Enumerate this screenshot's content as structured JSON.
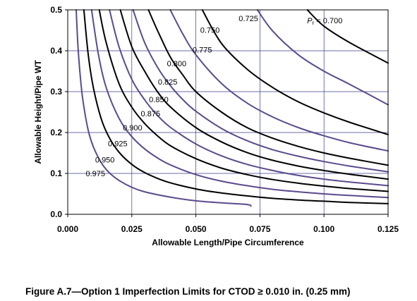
{
  "caption": "Figure  A.7—Option 1 Imperfection Limits for CTOD ≥ 0.010 in. (0.25 mm)",
  "chart_data": {
    "type": "line",
    "xlabel": "Allowable Length/Pipe Circumference",
    "ylabel": "Allowable Height/Pipe WT",
    "xlim": [
      0,
      0.125
    ],
    "ylim": [
      0,
      0.5
    ],
    "xticks": [
      "0.000",
      "0.025",
      "0.050",
      "0.075",
      "0.100",
      "0.125"
    ],
    "yticks": [
      "0.0",
      "0.1",
      "0.2",
      "0.3",
      "0.4",
      "0.5"
    ],
    "grid": true,
    "colors": {
      "black": "#000000",
      "purple": "#5b4a8c",
      "grid": "#3a3a8a"
    },
    "series": [
      {
        "name": "0.700",
        "color": "black",
        "label_x": 0.1003,
        "label_y": 0.467,
        "points": [
          [
            0.0935,
            0.5
          ],
          [
            0.1,
            0.46
          ],
          [
            0.11,
            0.42
          ],
          [
            0.125,
            0.37
          ]
        ]
      },
      {
        "name": "0.725",
        "color": "purple",
        "label_x": 0.0705,
        "label_y": 0.472,
        "points": [
          [
            0.074,
            0.5
          ],
          [
            0.08,
            0.448
          ],
          [
            0.09,
            0.39
          ],
          [
            0.1,
            0.35
          ],
          [
            0.11,
            0.318
          ],
          [
            0.125,
            0.268
          ]
        ]
      },
      {
        "name": "0.750",
        "color": "black",
        "label_x": 0.0555,
        "label_y": 0.444,
        "points": [
          [
            0.0525,
            0.5
          ],
          [
            0.06,
            0.418
          ],
          [
            0.07,
            0.355
          ],
          [
            0.08,
            0.31
          ],
          [
            0.09,
            0.275
          ],
          [
            0.1,
            0.248
          ],
          [
            0.11,
            0.225
          ],
          [
            0.125,
            0.195
          ]
        ]
      },
      {
        "name": "0.775",
        "color": "purple",
        "label_x": 0.0525,
        "label_y": 0.396,
        "points": [
          [
            0.04,
            0.5
          ],
          [
            0.045,
            0.44
          ],
          [
            0.05,
            0.39
          ],
          [
            0.06,
            0.32
          ],
          [
            0.07,
            0.272
          ],
          [
            0.08,
            0.238
          ],
          [
            0.09,
            0.212
          ],
          [
            0.1,
            0.192
          ],
          [
            0.11,
            0.175
          ],
          [
            0.125,
            0.155
          ]
        ]
      },
      {
        "name": "0.800",
        "color": "black",
        "label_x": 0.0425,
        "label_y": 0.362,
        "points": [
          [
            0.0315,
            0.5
          ],
          [
            0.035,
            0.45
          ],
          [
            0.04,
            0.385
          ],
          [
            0.045,
            0.34
          ],
          [
            0.05,
            0.3
          ],
          [
            0.06,
            0.25
          ],
          [
            0.07,
            0.212
          ],
          [
            0.08,
            0.186
          ],
          [
            0.09,
            0.166
          ],
          [
            0.1,
            0.15
          ],
          [
            0.11,
            0.137
          ],
          [
            0.125,
            0.12
          ]
        ]
      },
      {
        "name": "0.825",
        "color": "purple",
        "label_x": 0.039,
        "label_y": 0.317,
        "points": [
          [
            0.0255,
            0.5
          ],
          [
            0.03,
            0.42
          ],
          [
            0.035,
            0.36
          ],
          [
            0.04,
            0.315
          ],
          [
            0.045,
            0.28
          ],
          [
            0.05,
            0.252
          ],
          [
            0.06,
            0.21
          ],
          [
            0.07,
            0.18
          ],
          [
            0.08,
            0.158
          ],
          [
            0.09,
            0.142
          ],
          [
            0.1,
            0.129
          ],
          [
            0.11,
            0.118
          ],
          [
            0.125,
            0.104
          ]
        ]
      },
      {
        "name": "0.850",
        "color": "black",
        "label_x": 0.0355,
        "label_y": 0.274,
        "points": [
          [
            0.0205,
            0.5
          ],
          [
            0.025,
            0.41
          ],
          [
            0.03,
            0.35
          ],
          [
            0.035,
            0.3
          ],
          [
            0.04,
            0.263
          ],
          [
            0.05,
            0.212
          ],
          [
            0.06,
            0.177
          ],
          [
            0.07,
            0.151
          ],
          [
            0.08,
            0.132
          ],
          [
            0.09,
            0.118
          ],
          [
            0.1,
            0.107
          ],
          [
            0.11,
            0.098
          ],
          [
            0.125,
            0.086
          ]
        ]
      },
      {
        "name": "0.875",
        "color": "purple",
        "label_x": 0.0323,
        "label_y": 0.24,
        "points": [
          [
            0.0163,
            0.5
          ],
          [
            0.02,
            0.41
          ],
          [
            0.025,
            0.33
          ],
          [
            0.03,
            0.28
          ],
          [
            0.035,
            0.242
          ],
          [
            0.04,
            0.213
          ],
          [
            0.05,
            0.172
          ],
          [
            0.06,
            0.143
          ],
          [
            0.07,
            0.122
          ],
          [
            0.08,
            0.107
          ],
          [
            0.09,
            0.095
          ],
          [
            0.1,
            0.086
          ],
          [
            0.11,
            0.079
          ],
          [
            0.125,
            0.07
          ]
        ]
      },
      {
        "name": "0.900",
        "color": "black",
        "label_x": 0.0253,
        "label_y": 0.205,
        "points": [
          [
            0.0123,
            0.5
          ],
          [
            0.015,
            0.42
          ],
          [
            0.02,
            0.32
          ],
          [
            0.025,
            0.262
          ],
          [
            0.03,
            0.222
          ],
          [
            0.035,
            0.192
          ],
          [
            0.04,
            0.168
          ],
          [
            0.05,
            0.136
          ],
          [
            0.06,
            0.113
          ],
          [
            0.07,
            0.097
          ],
          [
            0.08,
            0.085
          ],
          [
            0.09,
            0.076
          ],
          [
            0.1,
            0.069
          ],
          [
            0.11,
            0.063
          ],
          [
            0.125,
            0.056
          ]
        ]
      },
      {
        "name": "0.925",
        "color": "purple",
        "label_x": 0.0195,
        "label_y": 0.166,
        "points": [
          [
            0.0093,
            0.5
          ],
          [
            0.012,
            0.39
          ],
          [
            0.015,
            0.31
          ],
          [
            0.02,
            0.235
          ],
          [
            0.025,
            0.19
          ],
          [
            0.03,
            0.16
          ],
          [
            0.035,
            0.138
          ],
          [
            0.04,
            0.121
          ],
          [
            0.05,
            0.097
          ],
          [
            0.06,
            0.081
          ],
          [
            0.07,
            0.07
          ],
          [
            0.08,
            0.061
          ],
          [
            0.09,
            0.055
          ],
          [
            0.1,
            0.05
          ],
          [
            0.11,
            0.046
          ],
          [
            0.125,
            0.041
          ]
        ]
      },
      {
        "name": "0.950",
        "color": "black",
        "label_x": 0.0145,
        "label_y": 0.127,
        "points": [
          [
            0.0063,
            0.5
          ],
          [
            0.008,
            0.39
          ],
          [
            0.01,
            0.31
          ],
          [
            0.013,
            0.235
          ],
          [
            0.016,
            0.19
          ],
          [
            0.02,
            0.152
          ],
          [
            0.025,
            0.122
          ],
          [
            0.03,
            0.102
          ],
          [
            0.035,
            0.088
          ],
          [
            0.04,
            0.077
          ],
          [
            0.05,
            0.062
          ],
          [
            0.06,
            0.052
          ],
          [
            0.07,
            0.045
          ],
          [
            0.08,
            0.039
          ],
          [
            0.09,
            0.035
          ],
          [
            0.1,
            0.032
          ],
          [
            0.11,
            0.029
          ],
          [
            0.125,
            0.026
          ]
        ]
      },
      {
        "name": "0.975",
        "color": "purple",
        "label_x": 0.0108,
        "label_y": 0.093,
        "points": [
          [
            0.0033,
            0.5
          ],
          [
            0.004,
            0.41
          ],
          [
            0.005,
            0.33
          ],
          [
            0.006,
            0.275
          ],
          [
            0.008,
            0.205
          ],
          [
            0.01,
            0.165
          ],
          [
            0.013,
            0.127
          ],
          [
            0.016,
            0.103
          ],
          [
            0.02,
            0.083
          ],
          [
            0.025,
            0.066
          ],
          [
            0.03,
            0.055
          ],
          [
            0.04,
            0.042
          ],
          [
            0.05,
            0.033
          ],
          [
            0.06,
            0.028
          ],
          [
            0.07,
            0.024
          ],
          [
            0.0715,
            0.02
          ]
        ]
      }
    ]
  }
}
